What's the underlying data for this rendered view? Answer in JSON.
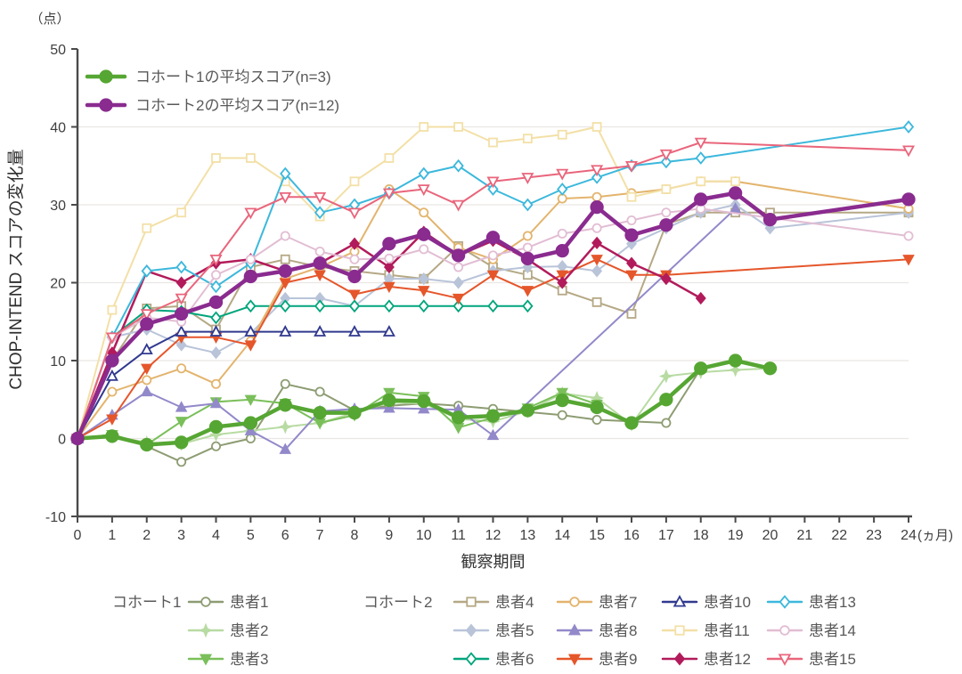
{
  "figure": {
    "y_axis": {
      "unit": "（点）",
      "label": "CHOP-INTEND スコアの変化量",
      "ticks": [
        50,
        40,
        30,
        20,
        10,
        0,
        -10
      ],
      "min": -10,
      "max": 50
    },
    "x_axis": {
      "label": "観察期間",
      "unit": "(ヵ月)",
      "min": 0,
      "max": 24,
      "tick_step": 1
    },
    "top_legend": [
      "cohort1_avg",
      "cohort2_avg"
    ],
    "bottom_legend": {
      "groups": [
        {
          "label": "コホート1",
          "columns": [
            [
              "p1",
              "p2",
              "p3"
            ]
          ]
        },
        {
          "label": "コホート2",
          "columns": [
            [
              "p4",
              "p5",
              "p6"
            ],
            [
              "p7",
              "p8",
              "p9"
            ],
            [
              "p10",
              "p11",
              "p12"
            ],
            [
              "p13",
              "p14",
              "p15"
            ]
          ]
        }
      ]
    }
  },
  "colors": {
    "axis": "#4a4a4a",
    "grid": "#eae6e4",
    "tick_text": "#3f3f3f",
    "legend_text": "#595959",
    "axis_title": "#333333"
  },
  "chart_data": {
    "type": "line",
    "title": "",
    "xlabel": "観察期間",
    "ylabel": "CHOP-INTEND スコアの変化量",
    "x": [
      0,
      1,
      2,
      3,
      4,
      5,
      6,
      7,
      8,
      9,
      10,
      11,
      12,
      13,
      14,
      15,
      16,
      17,
      18,
      19,
      20,
      21,
      22,
      23,
      24
    ],
    "ylim": [
      -10,
      50
    ],
    "grid_values": [
      0,
      10,
      20,
      30,
      40
    ],
    "series": [
      {
        "id": "cohort1_avg",
        "label": "コホート1の平均スコア(n=3)",
        "color": "#56a633",
        "marker": "circle",
        "open": false,
        "width": 4.5,
        "role": "average",
        "values": [
          0,
          0.3,
          -0.8,
          -0.5,
          1.5,
          2,
          4.3,
          3.3,
          3.3,
          4.9,
          4.8,
          2.7,
          2.9,
          3.6,
          4.9,
          4,
          2,
          5,
          9,
          10,
          9
        ]
      },
      {
        "id": "cohort2_avg",
        "label": "コホート2の平均スコア(n=12)",
        "color": "#8a2b8f",
        "marker": "circle",
        "open": false,
        "width": 4.5,
        "role": "average",
        "values": [
          0,
          10,
          14.7,
          16,
          17.5,
          20.8,
          21.5,
          22.5,
          20.8,
          25,
          26.2,
          23.5,
          25.8,
          23.1,
          24.1,
          29.7,
          26.1,
          27.4,
          30.7,
          31.5,
          28.1,
          null,
          null,
          null,
          30.7
        ]
      },
      {
        "id": "p1",
        "label": "患者1",
        "color": "#8d9c72",
        "marker": "circle",
        "open": true,
        "width": 2,
        "role": "patient",
        "values": [
          0,
          0.5,
          -1,
          -3,
          -1,
          0,
          7,
          6,
          3.6,
          4.2,
          4.5,
          4.2,
          3.8,
          3.4,
          3,
          2.4,
          2.2,
          2,
          9
        ]
      },
      {
        "id": "p2",
        "label": "患者2",
        "color": "#b7dba2",
        "marker": "star",
        "open": false,
        "width": 2,
        "role": "patient",
        "values": [
          0,
          0.3,
          -0.5,
          -0.7,
          0.5,
          1,
          1.5,
          2,
          3.3,
          4.6,
          4.5,
          2.5,
          2.2,
          3.5,
          5.8,
          5.2,
          1.8,
          8,
          8.5,
          8.8,
          9
        ]
      },
      {
        "id": "p3",
        "label": "患者3",
        "color": "#7abf5a",
        "marker": "tri-down",
        "open": false,
        "width": 2,
        "role": "patient",
        "values": [
          0,
          0.5,
          -0.8,
          2.2,
          4.7,
          5,
          4.5,
          2,
          3,
          5.9,
          5.4,
          1.4,
          2.7,
          3.9,
          5.9,
          4.4
        ]
      },
      {
        "id": "p4",
        "label": "患者4",
        "color": "#b5a885",
        "marker": "square",
        "open": true,
        "width": 2,
        "role": "patient",
        "values": [
          0,
          10,
          16.7,
          17,
          14,
          22,
          23,
          22,
          21.5,
          21,
          20.5,
          24.7,
          22,
          21,
          19,
          17.5,
          16,
          27.5,
          29,
          29,
          29,
          null,
          null,
          null,
          29
        ]
      },
      {
        "id": "p5",
        "label": "患者5",
        "color": "#b9c4d9",
        "marker": "diamond",
        "open": false,
        "width": 2,
        "role": "patient",
        "values": [
          0,
          13,
          14,
          12,
          11,
          13.5,
          18,
          18,
          17,
          20.5,
          20.5,
          20,
          21.5,
          22,
          22.1,
          21.5,
          25,
          27,
          29,
          30,
          27,
          null,
          null,
          null,
          29
        ]
      },
      {
        "id": "p6",
        "label": "患者6",
        "color": "#00a57c",
        "marker": "diamond",
        "open": true,
        "width": 2,
        "role": "patient",
        "values": [
          0,
          13,
          16.5,
          16.3,
          15.5,
          17,
          17,
          17,
          17,
          17,
          17,
          17,
          17,
          17
        ]
      },
      {
        "id": "p7",
        "label": "患者7",
        "color": "#e3b46d",
        "marker": "circle",
        "open": true,
        "width": 2,
        "role": "patient",
        "values": [
          0,
          6,
          7.5,
          9,
          7,
          12.5,
          20.5,
          22,
          24,
          32,
          29,
          24.5,
          23,
          26,
          30.8,
          31,
          31.5,
          32,
          33,
          33,
          null,
          null,
          null,
          null,
          29.5
        ]
      },
      {
        "id": "p8",
        "label": "患者8",
        "color": "#9289ca",
        "marker": "tri-up",
        "open": false,
        "width": 2,
        "role": "patient",
        "values": [
          0,
          3,
          6,
          4,
          4.5,
          1,
          -1.4,
          3.5,
          3.8,
          3.9,
          3.8,
          3.7,
          0.4,
          null,
          null,
          null,
          null,
          null,
          null,
          29.5
        ]
      },
      {
        "id": "p9",
        "label": "患者9",
        "color": "#e5562b",
        "marker": "tri-down",
        "open": false,
        "width": 2,
        "role": "patient",
        "values": [
          0,
          2.5,
          9,
          13,
          13,
          12,
          20,
          21,
          18.5,
          19.5,
          19,
          18,
          21,
          19,
          21,
          23,
          21,
          21,
          null,
          null,
          null,
          null,
          null,
          null,
          23
        ]
      },
      {
        "id": "p10",
        "label": "患者10",
        "color": "#31398f",
        "marker": "tri-up",
        "open": true,
        "width": 2,
        "role": "patient",
        "values": [
          0,
          8,
          11.4,
          13.7,
          13.7,
          13.7,
          13.7,
          13.7,
          13.7,
          13.7
        ]
      },
      {
        "id": "p11",
        "label": "患者11",
        "color": "#f3e0a7",
        "marker": "square",
        "open": true,
        "width": 2,
        "role": "patient",
        "values": [
          0,
          16.5,
          27,
          29,
          36,
          36,
          33,
          28.5,
          33,
          36,
          40,
          40,
          38,
          38.5,
          39,
          40,
          31,
          32,
          33,
          33
        ]
      },
      {
        "id": "p12",
        "label": "患者12",
        "color": "#b21b5b",
        "marker": "diamond",
        "open": false,
        "width": 2.5,
        "role": "patient",
        "values": [
          0,
          11,
          21.5,
          20,
          22.5,
          23,
          21.5,
          22.5,
          25,
          22,
          26.5,
          23.5,
          25.4,
          23,
          20,
          25.1,
          22.5,
          20.5,
          18
        ]
      },
      {
        "id": "p13",
        "label": "患者13",
        "color": "#3cb8dc",
        "marker": "diamond",
        "open": true,
        "width": 2,
        "role": "patient",
        "values": [
          0,
          13,
          21.5,
          22,
          19.5,
          22.5,
          34,
          29,
          30,
          31.5,
          34,
          35,
          32,
          30,
          32,
          33.5,
          35,
          35.5,
          36,
          null,
          null,
          null,
          null,
          null,
          40
        ]
      },
      {
        "id": "p14",
        "label": "患者14",
        "color": "#e2bdd3",
        "marker": "circle",
        "open": true,
        "width": 2,
        "role": "patient",
        "values": [
          0,
          13,
          15.5,
          15,
          21,
          23,
          26,
          24,
          23,
          23.1,
          24.3,
          22,
          23.5,
          24.5,
          26.3,
          27,
          28,
          29,
          29.5,
          null,
          null,
          null,
          null,
          null,
          26
        ]
      },
      {
        "id": "p15",
        "label": "患者15",
        "color": "#e9657b",
        "marker": "tri-down",
        "open": true,
        "width": 2,
        "role": "patient",
        "values": [
          0,
          13,
          16,
          18,
          23,
          29,
          31,
          31,
          29,
          31.5,
          32,
          30,
          33,
          33.5,
          34,
          34.5,
          35,
          36.5,
          38,
          null,
          null,
          null,
          null,
          null,
          37
        ]
      }
    ]
  }
}
